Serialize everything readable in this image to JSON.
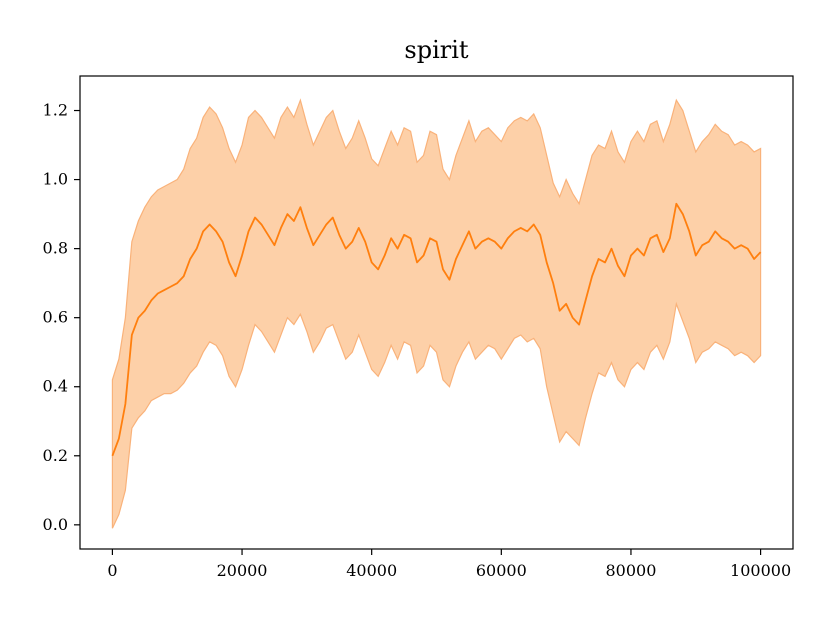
{
  "chart_data": {
    "type": "line",
    "title": "spirit",
    "xlabel": "",
    "ylabel": "",
    "xlim": [
      -5000,
      105000
    ],
    "ylim": [
      -0.07,
      1.3
    ],
    "x_ticks": [
      0,
      20000,
      40000,
      60000,
      80000,
      100000
    ],
    "x_tick_labels": [
      "0",
      "20000",
      "40000",
      "60000",
      "80000",
      "100000"
    ],
    "y_ticks": [
      0.0,
      0.2,
      0.4,
      0.6,
      0.8,
      1.0,
      1.2
    ],
    "y_tick_labels": [
      "0.0",
      "0.2",
      "0.4",
      "0.6",
      "0.8",
      "1.0",
      "1.2"
    ],
    "grid": false,
    "colors": {
      "line": "#ff7f0e",
      "band_fill": "#fdd0a8",
      "band_edge": "#f9b27a"
    },
    "series": [
      {
        "x": [
          0,
          1000,
          2000,
          3000,
          4000,
          5000,
          6000,
          7000,
          8000,
          9000,
          10000,
          11000,
          12000,
          13000,
          14000,
          15000,
          16000,
          17000,
          18000,
          19000,
          20000,
          21000,
          22000,
          23000,
          24000,
          25000,
          26000,
          27000,
          28000,
          29000,
          30000,
          31000,
          32000,
          33000,
          34000,
          35000,
          36000,
          37000,
          38000,
          39000,
          40000,
          41000,
          42000,
          43000,
          44000,
          45000,
          46000,
          47000,
          48000,
          49000,
          50000,
          51000,
          52000,
          53000,
          54000,
          55000,
          56000,
          57000,
          58000,
          59000,
          60000,
          61000,
          62000,
          63000,
          64000,
          65000,
          66000,
          67000,
          68000,
          69000,
          70000,
          71000,
          72000,
          73000,
          74000,
          75000,
          76000,
          77000,
          78000,
          79000,
          80000,
          81000,
          82000,
          83000,
          84000,
          85000,
          86000,
          87000,
          88000,
          89000,
          90000,
          91000,
          92000,
          93000,
          94000,
          95000,
          96000,
          97000,
          98000,
          99000,
          100000
        ],
        "y": [
          0.2,
          0.25,
          0.35,
          0.55,
          0.6,
          0.62,
          0.65,
          0.67,
          0.68,
          0.69,
          0.7,
          0.72,
          0.77,
          0.8,
          0.85,
          0.87,
          0.85,
          0.82,
          0.76,
          0.72,
          0.78,
          0.85,
          0.89,
          0.87,
          0.84,
          0.81,
          0.86,
          0.9,
          0.88,
          0.92,
          0.86,
          0.81,
          0.84,
          0.87,
          0.89,
          0.84,
          0.8,
          0.82,
          0.86,
          0.82,
          0.76,
          0.74,
          0.78,
          0.83,
          0.8,
          0.84,
          0.83,
          0.76,
          0.78,
          0.83,
          0.82,
          0.74,
          0.71,
          0.77,
          0.81,
          0.85,
          0.8,
          0.82,
          0.83,
          0.82,
          0.8,
          0.83,
          0.85,
          0.86,
          0.85,
          0.87,
          0.84,
          0.76,
          0.7,
          0.62,
          0.64,
          0.6,
          0.58,
          0.65,
          0.72,
          0.77,
          0.76,
          0.8,
          0.75,
          0.72,
          0.78,
          0.8,
          0.78,
          0.83,
          0.84,
          0.79,
          0.83,
          0.93,
          0.9,
          0.85,
          0.78,
          0.81,
          0.82,
          0.85,
          0.83,
          0.82,
          0.8,
          0.81,
          0.8,
          0.77,
          0.79
        ],
        "lower": [
          -0.01,
          0.03,
          0.1,
          0.28,
          0.31,
          0.33,
          0.36,
          0.37,
          0.38,
          0.38,
          0.39,
          0.41,
          0.44,
          0.46,
          0.5,
          0.53,
          0.52,
          0.49,
          0.43,
          0.4,
          0.45,
          0.52,
          0.58,
          0.56,
          0.53,
          0.5,
          0.55,
          0.6,
          0.58,
          0.61,
          0.56,
          0.5,
          0.53,
          0.57,
          0.58,
          0.53,
          0.48,
          0.5,
          0.55,
          0.5,
          0.45,
          0.43,
          0.47,
          0.52,
          0.48,
          0.53,
          0.52,
          0.44,
          0.46,
          0.52,
          0.5,
          0.42,
          0.4,
          0.46,
          0.5,
          0.53,
          0.48,
          0.5,
          0.52,
          0.51,
          0.48,
          0.51,
          0.54,
          0.55,
          0.53,
          0.54,
          0.51,
          0.4,
          0.32,
          0.24,
          0.27,
          0.25,
          0.23,
          0.31,
          0.38,
          0.44,
          0.43,
          0.47,
          0.42,
          0.4,
          0.45,
          0.47,
          0.45,
          0.5,
          0.52,
          0.48,
          0.53,
          0.64,
          0.59,
          0.54,
          0.47,
          0.5,
          0.51,
          0.53,
          0.52,
          0.51,
          0.49,
          0.5,
          0.49,
          0.47,
          0.49
        ],
        "upper": [
          0.42,
          0.48,
          0.6,
          0.82,
          0.88,
          0.92,
          0.95,
          0.97,
          0.98,
          0.99,
          1.0,
          1.03,
          1.09,
          1.12,
          1.18,
          1.21,
          1.19,
          1.15,
          1.09,
          1.05,
          1.1,
          1.18,
          1.2,
          1.18,
          1.15,
          1.12,
          1.18,
          1.21,
          1.18,
          1.23,
          1.16,
          1.1,
          1.14,
          1.18,
          1.2,
          1.14,
          1.09,
          1.12,
          1.17,
          1.12,
          1.06,
          1.04,
          1.09,
          1.14,
          1.1,
          1.15,
          1.14,
          1.05,
          1.07,
          1.14,
          1.13,
          1.03,
          1.0,
          1.07,
          1.12,
          1.17,
          1.11,
          1.14,
          1.15,
          1.13,
          1.11,
          1.15,
          1.17,
          1.18,
          1.17,
          1.19,
          1.15,
          1.07,
          0.99,
          0.95,
          1.0,
          0.96,
          0.93,
          1.0,
          1.07,
          1.1,
          1.09,
          1.14,
          1.08,
          1.05,
          1.11,
          1.14,
          1.11,
          1.16,
          1.17,
          1.11,
          1.16,
          1.23,
          1.2,
          1.14,
          1.08,
          1.11,
          1.13,
          1.16,
          1.14,
          1.13,
          1.1,
          1.11,
          1.1,
          1.08,
          1.09
        ]
      }
    ]
  }
}
